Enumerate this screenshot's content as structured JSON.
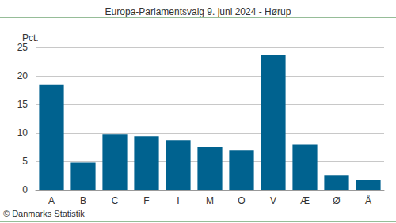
{
  "chart_data": {
    "type": "bar",
    "title": "Europa-Parlamentsvalg 9. juni 2024 - Hørup",
    "ylabel": "Pct.",
    "annotations": [
      "© Danmarks Statistik"
    ],
    "categories": [
      "A",
      "B",
      "C",
      "F",
      "I",
      "M",
      "O",
      "V",
      "Æ",
      "Ø",
      "Å"
    ],
    "values": [
      18.5,
      4.8,
      9.7,
      9.4,
      8.7,
      7.5,
      6.9,
      23.7,
      8.0,
      2.6,
      1.7
    ],
    "color": "#00628f",
    "ylim": [
      0,
      25
    ],
    "yticks": [
      0,
      5,
      10,
      15,
      20,
      25
    ],
    "grid": true
  }
}
